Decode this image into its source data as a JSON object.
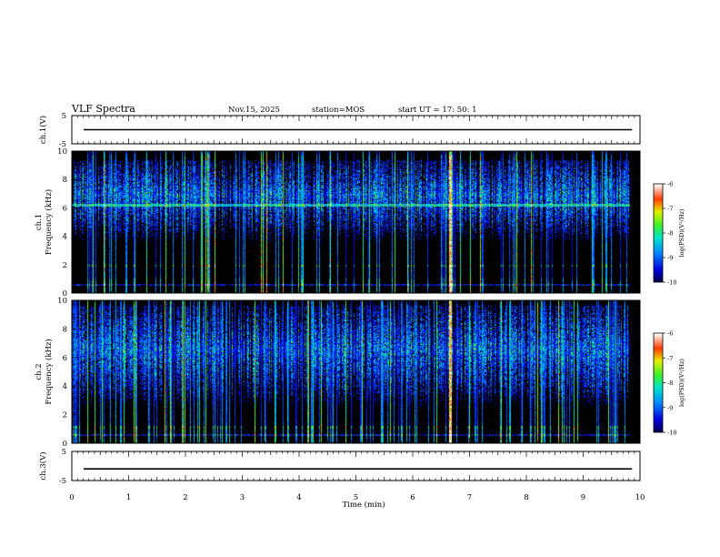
{
  "header": {
    "title": "VLF Spectra",
    "date": "Nov.15, 2025",
    "station": "station=MOS",
    "start_ut": "start  UT  =   17: 50: 1"
  },
  "colors": {
    "background": "#000000",
    "panel_border": "#000000",
    "trace": "#000000"
  },
  "chart_data": [
    {
      "type": "line",
      "name": "ch1-waveform",
      "ylabel": "ch.1(V)",
      "ylim": [
        -5,
        5
      ],
      "yticks": [
        "5",
        "-5"
      ],
      "level": 0,
      "xlim": [
        0,
        10
      ]
    },
    {
      "type": "heatmap",
      "name": "ch1-spectrogram",
      "ylabel_channel": "ch.1",
      "ylabel": "Frequency (kHz)",
      "ylim": [
        0,
        10
      ],
      "yticks": [
        "0",
        "2",
        "4",
        "6",
        "8",
        "10"
      ],
      "xlim": [
        0,
        10
      ],
      "data_end_min": 9.82,
      "band_kHz": [
        4.5,
        9.3
      ],
      "lines_kHz": [
        0.55,
        1.9,
        6.2
      ],
      "strong_spike_min": [
        6.65
      ],
      "colorbar": {
        "label": "log(PSD)(V²/Hz)",
        "range": [
          -10,
          -6
        ],
        "ticks": [
          "-6",
          "-7",
          "-8",
          "-9",
          "-10"
        ]
      }
    },
    {
      "type": "heatmap",
      "name": "ch2-spectrogram",
      "ylabel_channel": "ch.2",
      "ylabel": "Frequency (kHz)",
      "ylim": [
        0,
        10
      ],
      "yticks": [
        "0",
        "2",
        "4",
        "6",
        "8",
        "10"
      ],
      "xlim": [
        0,
        10
      ],
      "data_end_min": 9.82,
      "band_kHz": [
        3.5,
        9.6
      ],
      "lines_kHz": [
        0.55,
        1.1
      ],
      "strong_spike_min": [
        6.65
      ],
      "colorbar": {
        "label": "log(PSD)(V²/Hz)",
        "range": [
          -10,
          -6
        ],
        "ticks": [
          "-6",
          "-7",
          "-8",
          "-9",
          "-10"
        ]
      }
    },
    {
      "type": "line",
      "name": "ch3-waveform",
      "ylabel": "ch.3(V)",
      "ylim": [
        -5,
        5
      ],
      "yticks": [
        "5",
        "-5"
      ],
      "level": -1,
      "xlim": [
        0,
        10
      ]
    }
  ],
  "xaxis": {
    "label": "Time  (min)",
    "ticks": [
      "0",
      "1",
      "2",
      "3",
      "4",
      "5",
      "6",
      "7",
      "8",
      "9",
      "10"
    ],
    "range": [
      0,
      10
    ]
  }
}
